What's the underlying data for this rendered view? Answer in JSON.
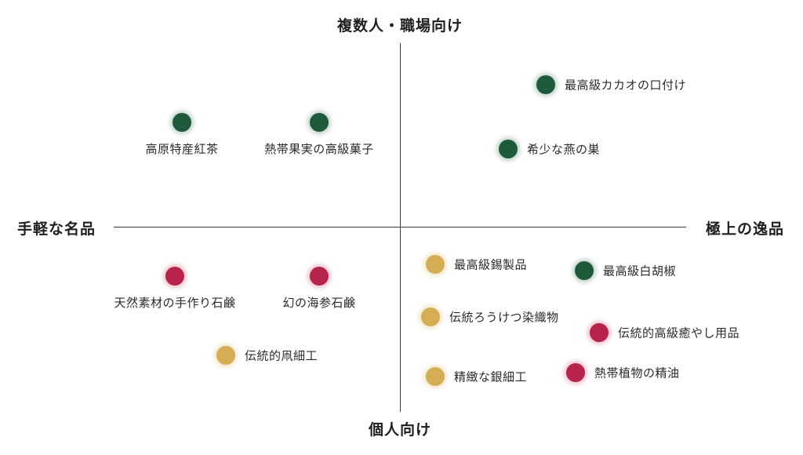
{
  "axes": {
    "top": "複数人・職場向け",
    "bottom": "個人向け",
    "left": "手軽な名品",
    "right": "極上の逸品"
  },
  "colors": {
    "green": "#1e5a3a",
    "red": "#b8234c",
    "gold": "#d4ad55"
  },
  "items": [
    {
      "label": "最高級カカオの口付け",
      "color": "green"
    },
    {
      "label": "高原特産紅茶",
      "color": "green"
    },
    {
      "label": "熱帯果実の高級菓子",
      "color": "green"
    },
    {
      "label": "希少な燕の巣",
      "color": "green"
    },
    {
      "label": "最高級錫製品",
      "color": "gold"
    },
    {
      "label": "最高級白胡椒",
      "color": "green"
    },
    {
      "label": "天然素材の手作り石鹸",
      "color": "red"
    },
    {
      "label": "幻の海参石鹸",
      "color": "red"
    },
    {
      "label": "伝統ろうけつ染織物",
      "color": "gold"
    },
    {
      "label": "伝統的高級癒やし用品",
      "color": "red"
    },
    {
      "label": "伝統的凧細工",
      "color": "gold"
    },
    {
      "label": "精緻な銀細工",
      "color": "gold"
    },
    {
      "label": "熱帯植物の精油",
      "color": "red"
    }
  ]
}
